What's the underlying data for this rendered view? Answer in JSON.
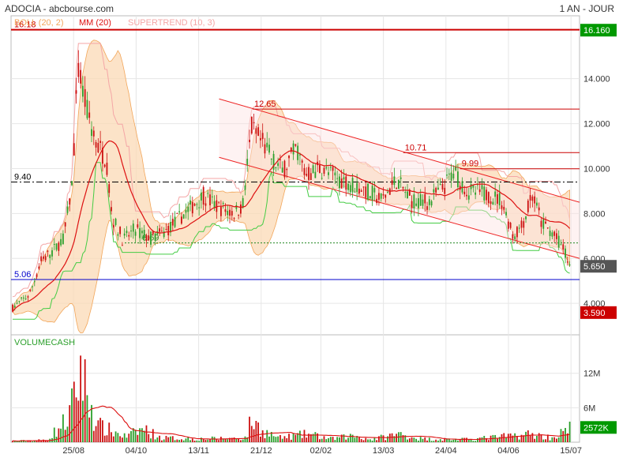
{
  "header": {
    "title": "ADOCIA - abcbourse.com",
    "period": "1 AN - JOUR"
  },
  "legend": {
    "boll": "BOLL (20, 2)",
    "mm": "MM (20)",
    "supertrend": "SUPERTREND (10, 3)"
  },
  "colors": {
    "up": "#2ca02c",
    "down": "#cc1111",
    "boll_fill": "#fbd9b5",
    "boll_line": "#f2a65a",
    "mm": "#dd1111",
    "supertrend": "#f4a6a6",
    "supertrend_up": "#44cc44",
    "channel": "#ee2222",
    "level_high": "#cc0000",
    "level_low": "#0000cc"
  },
  "chart_data": {
    "type": "candlestick",
    "x_ticks": [
      "25/08",
      "04/10",
      "13/11",
      "21/12",
      "02/02",
      "13/03",
      "24/04",
      "04/06",
      "15/07"
    ],
    "price_axis": {
      "ticks": [
        "4.000",
        "6.000",
        "8.000",
        "10.000",
        "12.000",
        "14.000"
      ],
      "range": [
        2.6,
        16.8
      ]
    },
    "volume_axis": {
      "title": "VOLUMECASH",
      "ticks": [
        "6M",
        "12M"
      ],
      "range": [
        0,
        16.5
      ]
    },
    "price_tags": [
      {
        "label": "16.160",
        "value": 16.16,
        "color": "#009900"
      },
      {
        "label": "5.650",
        "value": 5.65,
        "color": "#555555"
      },
      {
        "label": "3.590",
        "value": 3.59,
        "color": "#cc0000"
      }
    ],
    "volume_tags": [
      {
        "label": "2572K",
        "value": 2.572,
        "color": "#009900"
      }
    ],
    "horizontal_levels": [
      {
        "label": "16.18",
        "value": 16.18,
        "style": "solid-red"
      },
      {
        "label": "9.40",
        "value": 9.4,
        "style": "dashdot-black"
      },
      {
        "label": "6.69",
        "value": 6.69,
        "style": "dotted-green"
      },
      {
        "label": "5.06",
        "value": 5.06,
        "style": "solid-blue"
      }
    ],
    "resistance_levels": [
      {
        "label": "12.65",
        "value": 12.65
      },
      {
        "label": "10.71",
        "value": 10.71
      },
      {
        "label": "9.99",
        "value": 9.99
      }
    ],
    "channel": {
      "upper": [
        [
          0.366,
          13.1
        ],
        [
          1.0,
          8.5
        ]
      ],
      "lower": [
        [
          0.366,
          10.5
        ],
        [
          1.0,
          6.0
        ]
      ]
    },
    "price_keys": [
      [
        0,
        3.8
      ],
      [
        0.03,
        4.4
      ],
      [
        0.05,
        5.9
      ],
      [
        0.07,
        6.3
      ],
      [
        0.09,
        6.9
      ],
      [
        0.105,
        9.4
      ],
      [
        0.115,
        14.5
      ],
      [
        0.125,
        13.2
      ],
      [
        0.145,
        11.2
      ],
      [
        0.165,
        10.4
      ],
      [
        0.175,
        7.8
      ],
      [
        0.195,
        6.8
      ],
      [
        0.215,
        7.3
      ],
      [
        0.24,
        6.9
      ],
      [
        0.265,
        7.1
      ],
      [
        0.285,
        7.6
      ],
      [
        0.315,
        8.3
      ],
      [
        0.335,
        8.8
      ],
      [
        0.36,
        8.3
      ],
      [
        0.39,
        8.0
      ],
      [
        0.405,
        8.4
      ],
      [
        0.42,
        11.8
      ],
      [
        0.44,
        11.1
      ],
      [
        0.46,
        10.3
      ],
      [
        0.475,
        9.9
      ],
      [
        0.5,
        10.9
      ],
      [
        0.515,
        9.7
      ],
      [
        0.54,
        10.0
      ],
      [
        0.57,
        9.6
      ],
      [
        0.6,
        9.3
      ],
      [
        0.63,
        8.9
      ],
      [
        0.65,
        8.6
      ],
      [
        0.675,
        9.5
      ],
      [
        0.7,
        8.6
      ],
      [
        0.73,
        8.5
      ],
      [
        0.76,
        9.2
      ],
      [
        0.775,
        9.9
      ],
      [
        0.8,
        9.0
      ],
      [
        0.83,
        8.9
      ],
      [
        0.86,
        8.6
      ],
      [
        0.88,
        7.0
      ],
      [
        0.895,
        7.4
      ],
      [
        0.915,
        8.8
      ],
      [
        0.93,
        7.6
      ],
      [
        0.95,
        7.1
      ],
      [
        0.97,
        6.4
      ],
      [
        0.98,
        5.65
      ]
    ],
    "volume_keys": [
      [
        0,
        0.2
      ],
      [
        0.06,
        0.4
      ],
      [
        0.095,
        4
      ],
      [
        0.11,
        8
      ],
      [
        0.12,
        14
      ],
      [
        0.13,
        9
      ],
      [
        0.15,
        3
      ],
      [
        0.2,
        1
      ],
      [
        0.23,
        2.5
      ],
      [
        0.26,
        0.8
      ],
      [
        0.33,
        0.6
      ],
      [
        0.41,
        0.8
      ],
      [
        0.42,
        4
      ],
      [
        0.44,
        2
      ],
      [
        0.47,
        0.8
      ],
      [
        0.52,
        1.5
      ],
      [
        0.56,
        0.6
      ],
      [
        0.6,
        1.2
      ],
      [
        0.63,
        0.5
      ],
      [
        0.68,
        1.5
      ],
      [
        0.72,
        0.6
      ],
      [
        0.8,
        0.5
      ],
      [
        0.86,
        1
      ],
      [
        0.91,
        1.5
      ],
      [
        0.95,
        0.8
      ],
      [
        0.98,
        2.5
      ]
    ],
    "candle_count": 255
  }
}
